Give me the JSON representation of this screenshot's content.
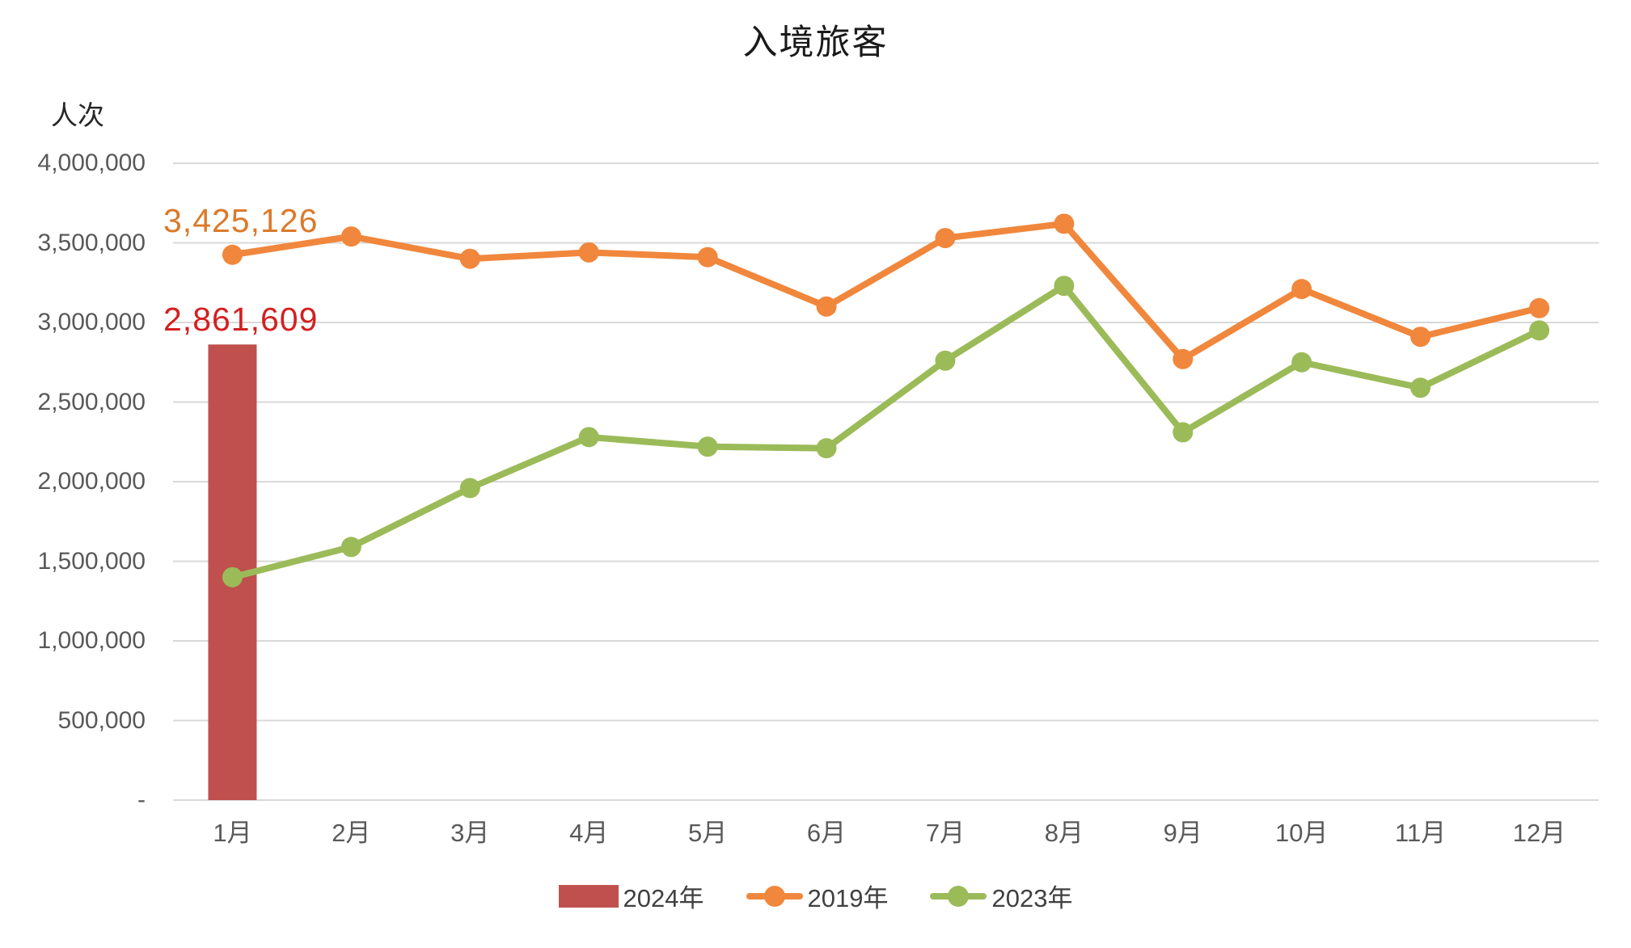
{
  "chart": {
    "title": "入境旅客",
    "y_unit": "人次",
    "annotations": [
      {
        "series": "2019年",
        "month": "1月",
        "text": "3,425,126",
        "color": "#DA7A2B"
      },
      {
        "series": "2024年",
        "month": "1月",
        "text": "2,861,609",
        "color": "#D32020"
      }
    ]
  },
  "chart_data": {
    "type": "combo-bar-line",
    "title": "入境旅客",
    "xlabel": "",
    "ylabel": "人次",
    "categories": [
      "1月",
      "2月",
      "3月",
      "4月",
      "5月",
      "6月",
      "7月",
      "8月",
      "9月",
      "10月",
      "11月",
      "12月"
    ],
    "series": [
      {
        "name": "2024年",
        "type": "bar",
        "color": "#C0504D",
        "values": [
          2861609,
          null,
          null,
          null,
          null,
          null,
          null,
          null,
          null,
          null,
          null,
          null
        ]
      },
      {
        "name": "2019年",
        "type": "line",
        "color": "#F0873C",
        "values": [
          3425126,
          3540000,
          3400000,
          3440000,
          3410000,
          3100000,
          3530000,
          3620000,
          2770000,
          3210000,
          2910000,
          3090000
        ]
      },
      {
        "name": "2023年",
        "type": "line",
        "color": "#9BBB59",
        "values": [
          1400000,
          1590000,
          1960000,
          2280000,
          2220000,
          2210000,
          2760000,
          3230000,
          2310000,
          2750000,
          2590000,
          2950000
        ]
      }
    ],
    "y_ticks": [
      "4,000,000",
      "3,500,000",
      "3,000,000",
      "2,500,000",
      "2,000,000",
      "1,500,000",
      "1,000,000",
      "500,000",
      "-"
    ],
    "ylim": [
      0,
      4000000
    ],
    "grid": true,
    "gridline_color": "#D9D9D9",
    "legend_position": "bottom"
  }
}
